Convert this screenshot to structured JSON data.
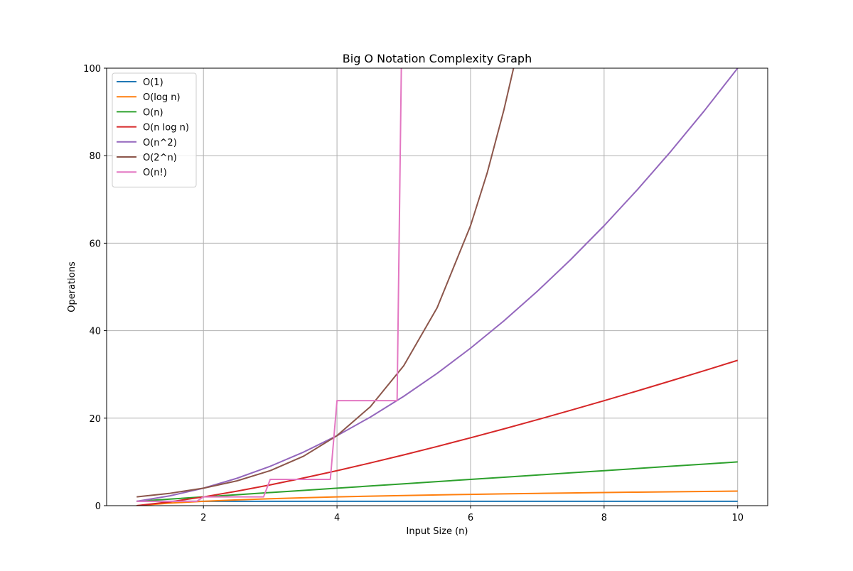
{
  "chart_data": {
    "type": "line",
    "title": "Big O Notation Complexity Graph",
    "xlabel": "Input Size (n)",
    "ylabel": "Operations",
    "xlim": [
      0.55,
      10.45
    ],
    "ylim": [
      0,
      100
    ],
    "x_ticks": [
      2,
      4,
      6,
      8,
      10
    ],
    "y_ticks": [
      0,
      20,
      40,
      60,
      80,
      100
    ],
    "grid": true,
    "legend_position": "upper-left",
    "series": [
      {
        "name": "O(1)",
        "color": "#1f77b4",
        "x": [
          1,
          1.5,
          2,
          2.5,
          3,
          3.5,
          4,
          4.5,
          5,
          5.5,
          6,
          6.5,
          7,
          7.5,
          8,
          8.5,
          9,
          9.5,
          10
        ],
        "y": [
          1,
          1,
          1,
          1,
          1,
          1,
          1,
          1,
          1,
          1,
          1,
          1,
          1,
          1,
          1,
          1,
          1,
          1,
          1
        ]
      },
      {
        "name": "O(log n)",
        "color": "#ff7f0e",
        "x": [
          1,
          1.5,
          2,
          2.5,
          3,
          3.5,
          4,
          4.5,
          5,
          5.5,
          6,
          6.5,
          7,
          7.5,
          8,
          8.5,
          9,
          9.5,
          10
        ],
        "y": [
          0,
          0.58,
          1,
          1.32,
          1.58,
          1.81,
          2,
          2.17,
          2.32,
          2.46,
          2.58,
          2.7,
          2.81,
          2.91,
          3,
          3.09,
          3.17,
          3.25,
          3.32
        ]
      },
      {
        "name": "O(n)",
        "color": "#2ca02c",
        "x": [
          1,
          1.5,
          2,
          2.5,
          3,
          3.5,
          4,
          4.5,
          5,
          5.5,
          6,
          6.5,
          7,
          7.5,
          8,
          8.5,
          9,
          9.5,
          10
        ],
        "y": [
          1,
          1.5,
          2,
          2.5,
          3,
          3.5,
          4,
          4.5,
          5,
          5.5,
          6,
          6.5,
          7,
          7.5,
          8,
          8.5,
          9,
          9.5,
          10
        ]
      },
      {
        "name": "O(n log n)",
        "color": "#d62728",
        "x": [
          1,
          1.5,
          2,
          2.5,
          3,
          3.5,
          4,
          4.5,
          5,
          5.5,
          6,
          6.5,
          7,
          7.5,
          8,
          8.5,
          9,
          9.5,
          10
        ],
        "y": [
          0,
          0.88,
          2,
          3.3,
          4.75,
          6.33,
          8,
          9.77,
          11.61,
          13.53,
          15.51,
          17.55,
          19.65,
          21.8,
          24,
          26.24,
          28.53,
          30.86,
          33.22
        ]
      },
      {
        "name": "O(n^2)",
        "color": "#9467bd",
        "x": [
          1,
          1.5,
          2,
          2.5,
          3,
          3.5,
          4,
          4.5,
          5,
          5.5,
          6,
          6.5,
          7,
          7.5,
          8,
          8.5,
          9,
          9.5,
          10
        ],
        "y": [
          1,
          2.25,
          4,
          6.25,
          9,
          12.25,
          16,
          20.25,
          25,
          30.25,
          36,
          42.25,
          49,
          56.25,
          64,
          72.25,
          81,
          90.25,
          100
        ]
      },
      {
        "name": "O(2^n)",
        "color": "#8c564b",
        "x": [
          1,
          1.5,
          2,
          2.5,
          3,
          3.5,
          4,
          4.5,
          5,
          5.5,
          6,
          6.25,
          6.5,
          6.65
        ],
        "y": [
          2,
          2.83,
          4,
          5.66,
          8,
          11.31,
          16,
          22.63,
          32,
          45.25,
          64,
          76.1,
          90.51,
          100.4
        ]
      },
      {
        "name": "O(n!)",
        "color": "#e377c2",
        "x": [
          1,
          1.9,
          2.0,
          2.9,
          3.0,
          3.9,
          4.0,
          4.9,
          4.98
        ],
        "y": [
          1,
          1,
          2,
          2,
          6,
          6,
          24,
          24,
          120
        ]
      }
    ]
  }
}
